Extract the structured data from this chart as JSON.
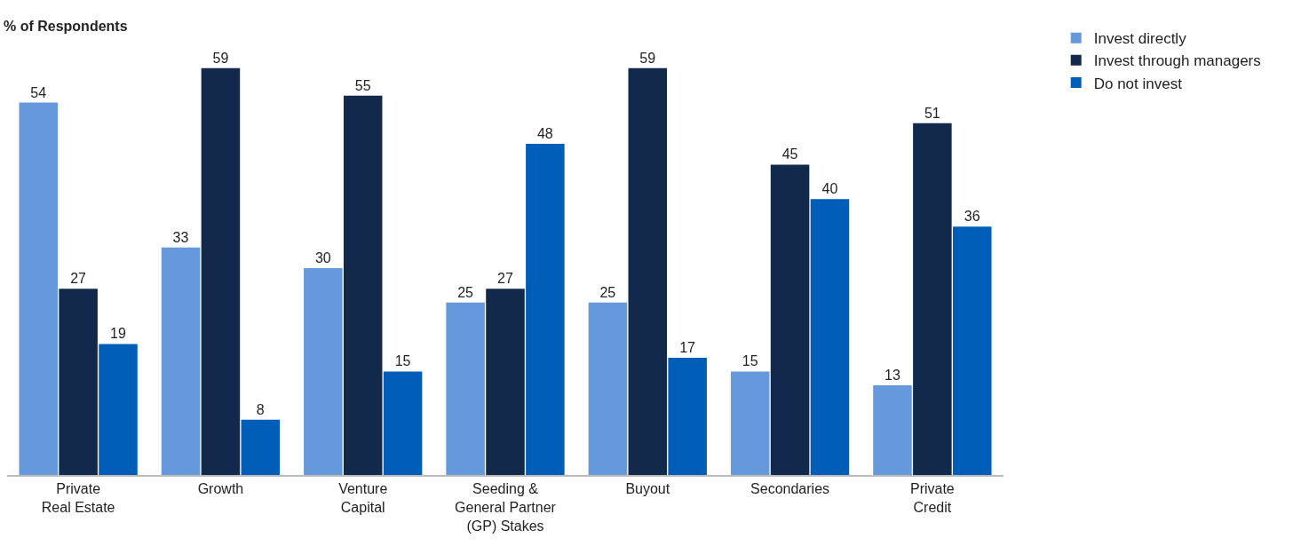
{
  "chart_data": {
    "type": "bar",
    "ylabel": "% of Respondents",
    "categories": [
      "Private\nReal Estate",
      "Growth",
      "Venture\nCapital",
      "Seeding &\nGeneral Partner\n(GP) Stakes",
      "Buyout",
      "Secondaries",
      "Private\nCredit"
    ],
    "series": [
      {
        "name": "Invest directly",
        "color": "#6699db",
        "values": [
          54,
          33,
          30,
          25,
          25,
          15,
          13
        ]
      },
      {
        "name": "Invest through managers",
        "color": "#13294b",
        "values": [
          27,
          59,
          55,
          27,
          59,
          45,
          51
        ]
      },
      {
        "name": "Do not invest",
        "color": "#005eb8",
        "values": [
          19,
          8,
          15,
          48,
          17,
          40,
          36
        ]
      }
    ],
    "data_labels": true,
    "legend": "top right"
  }
}
